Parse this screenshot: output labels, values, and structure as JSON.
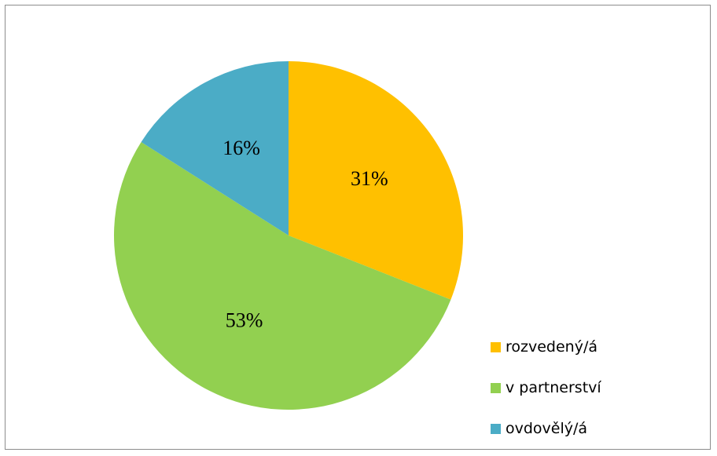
{
  "chart_data": {
    "type": "pie",
    "categories": [
      "rozvedený/á",
      "v partnerství",
      "ovdovělý/á"
    ],
    "values": [
      31,
      53,
      16
    ],
    "data_labels": [
      "31%",
      "53%",
      "16%"
    ],
    "colors": [
      "#FFC000",
      "#92D050",
      "#4BACC6"
    ],
    "start_angle_deg": 0,
    "direction": "clockwise",
    "legend_position": "right-bottom",
    "title": ""
  }
}
